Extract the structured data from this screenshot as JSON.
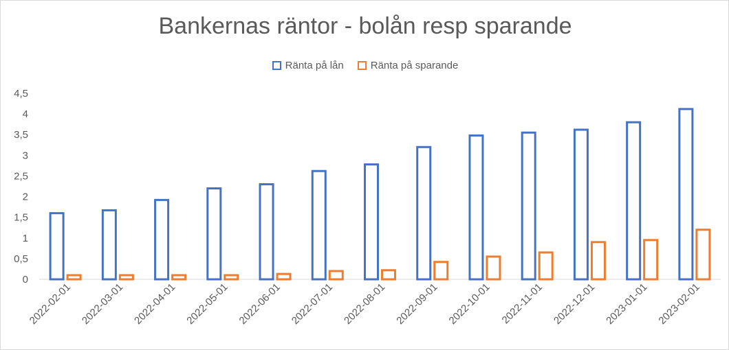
{
  "chart_data": {
    "type": "bar",
    "title": "Bankernas räntor - bolån resp sparande",
    "xlabel": "",
    "ylabel": "",
    "categories": [
      "2022-02-01",
      "2022-03-01",
      "2022-04-01",
      "2022-05-01",
      "2022-06-01",
      "2022-07-01",
      "2022-08-01",
      "2022-09-01",
      "2022-10-01",
      "2022-11-01",
      "2022-12-01",
      "2023-01-01",
      "2023-02-01"
    ],
    "series": [
      {
        "name": "Ränta på lån",
        "color": "#4472C4",
        "values": [
          1.6,
          1.67,
          1.92,
          2.2,
          2.3,
          2.62,
          2.78,
          3.2,
          3.48,
          3.55,
          3.62,
          3.8,
          4.12
        ]
      },
      {
        "name": "Ränta på sparande",
        "color": "#ED7D31",
        "values": [
          0.1,
          0.1,
          0.1,
          0.1,
          0.13,
          0.2,
          0.22,
          0.42,
          0.55,
          0.65,
          0.9,
          0.95,
          1.2
        ]
      }
    ],
    "ylim": [
      0,
      4.5
    ],
    "yticks": [
      "0",
      "0,5",
      "1",
      "1,5",
      "2",
      "2,5",
      "3",
      "3,5",
      "4",
      "4,5"
    ],
    "grid": false,
    "legend_position": "top"
  }
}
